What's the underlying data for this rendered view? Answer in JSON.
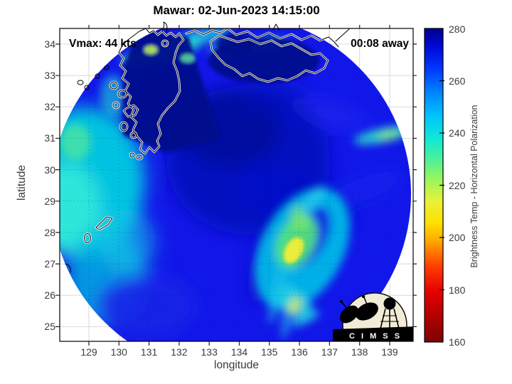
{
  "title": "Mawar: 02-Jun-2023 14:15:00",
  "overlays": {
    "vmax_label": "Vmax: 44 kts",
    "eta_label": "00:08 away"
  },
  "axes": {
    "x": {
      "label": "longitude",
      "ticks": [
        "129",
        "130",
        "131",
        "132",
        "133",
        "134",
        "135",
        "136",
        "137",
        "138",
        "139"
      ]
    },
    "y": {
      "label": "latitude",
      "ticks": [
        "34",
        "33",
        "32",
        "31",
        "30",
        "29",
        "28",
        "27",
        "26",
        "25"
      ]
    }
  },
  "colorbar": {
    "label": "Brightness Temp - Horizontal Polarization",
    "ticks": [
      "280",
      "260",
      "240",
      "220",
      "200",
      "180",
      "160"
    ],
    "min": 160,
    "max": 280,
    "colormap": "jet"
  },
  "logo": {
    "caption": "C I M S S"
  },
  "colors": {
    "ocean_blue": "#1217e9",
    "storm_dark_blue": "#0009b8",
    "land_navy": "#000a8c",
    "cold_cyan": "#00cde2",
    "rainband_yellow": "#f2ee35",
    "grid_gray": "#d9d9d9"
  },
  "chart_data": {
    "type": "heatmap",
    "title": "Mawar: 02-Jun-2023 14:15:00",
    "xlabel": "longitude",
    "ylabel": "latitude",
    "xlim": [
      128.05,
      139.9
    ],
    "ylim": [
      24.5,
      34.5
    ],
    "x_ticks": [
      129,
      130,
      131,
      132,
      133,
      134,
      135,
      136,
      137,
      138,
      139
    ],
    "y_ticks": [
      25,
      26,
      27,
      28,
      29,
      30,
      31,
      32,
      33,
      34
    ],
    "grid": true,
    "colorbar": {
      "label": "Brightness Temp - Horizontal Polarization",
      "range": [
        160,
        280
      ],
      "ticks": [
        160,
        180,
        200,
        220,
        240,
        260,
        280
      ],
      "colormap": "jet",
      "position": "right"
    },
    "swath": {
      "shape": "circle",
      "center_lon": 133.7,
      "center_lat": 29.2,
      "radius_deg": 5.8,
      "outside_value": null
    },
    "overlay_annotations": [
      {
        "text": "Vmax: 44 kts",
        "position": "top-left"
      },
      {
        "text": "00:08 away",
        "position": "top-right"
      }
    ],
    "features": [
      {
        "region": "open ocean background",
        "approx_value_K": 263
      },
      {
        "region": "storm central dense overcast",
        "lon_range": [
          131.5,
          135.5
        ],
        "lat_range": [
          29,
          32.5
        ],
        "approx_value_K": 272
      },
      {
        "region": "Kyushu and Shikoku land (coldest navy)",
        "lon_range": [
          130,
          134.5
        ],
        "lat_range": [
          32.5,
          34.4
        ],
        "approx_value_K": 277
      },
      {
        "region": "western swath cold cyan band",
        "lon_range": [
          128.2,
          130.8
        ],
        "lat_range": [
          27,
          31.5
        ],
        "approx_value_K": 240
      },
      {
        "region": "spiral rainband hook with yellow core",
        "lon_range": [
          134.6,
          136.6
        ],
        "lat_range": [
          25.2,
          28.8
        ],
        "approx_value_K": 215,
        "min_value_K": 200
      },
      {
        "region": "coastal convective streak near Seto coast",
        "lon_range": [
          130.3,
          132.8
        ],
        "lat_range": [
          33.5,
          34.2
        ],
        "approx_value_K": 222
      },
      {
        "region": "eastern edge streak",
        "lon_range": [
          137.4,
          139.3
        ],
        "lat_range": [
          30.3,
          30.9
        ],
        "approx_value_K": 238
      },
      {
        "region": "small cold streak south of rainband",
        "lon_range": [
          134.9,
          135.6
        ],
        "lat_range": [
          24.8,
          25.3
        ],
        "approx_value_K": 235
      }
    ],
    "coastlines": "Japan: Kyushu, Shikoku, western Honshu, offshore islands (white over data, black outside swath)",
    "legend_position": "none"
  }
}
